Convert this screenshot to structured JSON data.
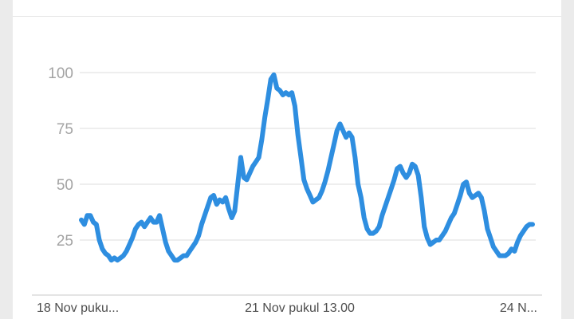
{
  "chart_data": {
    "type": "line",
    "title": "",
    "xlabel": "",
    "ylabel": "",
    "ylim": [
      0,
      100
    ],
    "y_ticks": [
      25,
      50,
      75,
      100
    ],
    "grid": true,
    "x_tick_labels": [
      {
        "label": "18 Nov puku...",
        "index": 0
      },
      {
        "label": "21 Nov pukul 13.00",
        "index": 80
      },
      {
        "label": "24 N...",
        "index": 167
      }
    ],
    "line_color": "#2e8ee0",
    "series": [
      {
        "values": [
          34,
          32,
          36,
          36,
          33,
          32,
          25,
          21,
          19,
          18,
          16,
          17,
          16,
          17,
          18,
          20,
          23,
          26,
          30,
          32,
          33,
          31,
          33,
          35,
          33,
          33,
          36,
          30,
          24,
          20,
          18,
          16,
          16,
          17,
          18,
          18,
          20,
          22,
          24,
          27,
          32,
          36,
          40,
          44,
          45,
          41,
          43,
          42,
          44,
          39,
          35,
          38,
          50,
          62,
          53,
          52,
          55,
          58,
          60,
          62,
          70,
          80,
          88,
          97,
          99,
          93,
          92,
          90,
          91,
          90,
          91,
          85,
          72,
          62,
          52,
          48,
          45,
          42,
          43,
          44,
          47,
          51,
          56,
          62,
          68,
          74,
          77,
          74,
          71,
          73,
          71,
          62,
          50,
          44,
          35,
          30,
          28,
          28,
          29,
          31,
          36,
          40,
          44,
          48,
          52,
          57,
          58,
          55,
          53,
          55,
          59,
          58,
          54,
          44,
          31,
          26,
          23,
          24,
          25,
          25,
          27,
          29,
          32,
          35,
          37,
          41,
          45,
          50,
          51,
          46,
          44,
          45,
          46,
          44,
          38,
          30,
          26,
          22,
          20,
          18,
          18,
          18,
          19,
          21,
          20,
          24,
          27,
          29,
          31,
          32,
          32
        ]
      }
    ]
  }
}
